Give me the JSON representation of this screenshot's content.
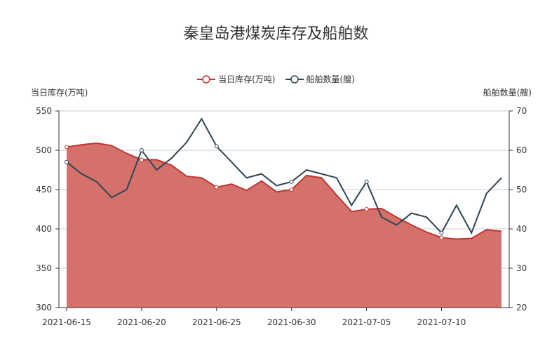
{
  "chart_data": {
    "type": "line",
    "title": "秦皇岛港煤炭库存及船舶数",
    "legend": [
      "当日库存(万吨)",
      "船舶数量(艘)"
    ],
    "legend_position": "top-center",
    "x": [
      "2021-06-15",
      "2021-06-16",
      "2021-06-17",
      "2021-06-18",
      "2021-06-19",
      "2021-06-20",
      "2021-06-21",
      "2021-06-22",
      "2021-06-23",
      "2021-06-24",
      "2021-06-25",
      "2021-06-26",
      "2021-06-27",
      "2021-06-28",
      "2021-06-29",
      "2021-06-30",
      "2021-07-01",
      "2021-07-02",
      "2021-07-03",
      "2021-07-04",
      "2021-07-05",
      "2021-07-06",
      "2021-07-07",
      "2021-07-08",
      "2021-07-09",
      "2021-07-10",
      "2021-07-11",
      "2021-07-12",
      "2021-07-13",
      "2021-07-14"
    ],
    "x_tick_labels": [
      "2021-06-15",
      "2021-06-20",
      "2021-06-25",
      "2021-06-30",
      "2021-07-05",
      "2021-07-10"
    ],
    "y_left": {
      "label": "当日库存(万吨)",
      "range": [
        300,
        550
      ],
      "ticks": [
        300,
        350,
        400,
        450,
        500,
        550
      ]
    },
    "y_right": {
      "label": "船舶数量(艘)",
      "range": [
        20,
        70
      ],
      "ticks": [
        20,
        30,
        40,
        50,
        60,
        70
      ]
    },
    "grid": true,
    "series": [
      {
        "name": "当日库存(万吨)",
        "type": "area",
        "axis": "left",
        "color": "#c23531",
        "fill": "#d4716b",
        "values": [
          504,
          507,
          509,
          506,
          496,
          488,
          488,
          481,
          467,
          465,
          453,
          457,
          449,
          461,
          447,
          450,
          468,
          465,
          443,
          422,
          425,
          426,
          415,
          405,
          396,
          389,
          387,
          388,
          399,
          397
        ]
      },
      {
        "name": "船舶数量(艘)",
        "type": "line",
        "axis": "right",
        "color": "#2f4554",
        "values": [
          57,
          54,
          52,
          48,
          50,
          60,
          55,
          58,
          62,
          68,
          61,
          57,
          53,
          54,
          51,
          52,
          55,
          54,
          53,
          46,
          52,
          43,
          41,
          44,
          43,
          39,
          46,
          39,
          49,
          53
        ]
      }
    ]
  }
}
